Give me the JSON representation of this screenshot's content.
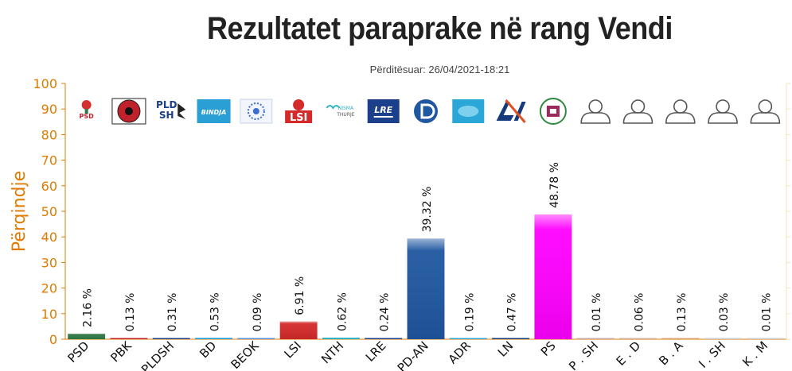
{
  "chart_data": {
    "type": "bar",
    "title": "Rezultatet paraprake në rang Vendi",
    "subtitle": "Përditësuar: 26/04/2021-18:21",
    "ylabel": "Përqindje",
    "xlabel": "",
    "ylim": [
      0,
      100
    ],
    "yticks": [
      0,
      10,
      20,
      30,
      40,
      50,
      60,
      70,
      80,
      90,
      100
    ],
    "grid": false,
    "categories": [
      "PSD",
      "PBK",
      "PLDSH",
      "BD",
      "BEOK",
      "LSI",
      "NTH",
      "LRE",
      "PD-AN",
      "ADR",
      "LN",
      "PS",
      "P . SH",
      "E . D",
      "B . A",
      "I . SH",
      "K . M"
    ],
    "values": [
      2.16,
      0.13,
      0.31,
      0.53,
      0.09,
      6.91,
      0.62,
      0.24,
      39.32,
      0.19,
      0.47,
      48.78,
      0.01,
      0.06,
      0.13,
      0.03,
      0.01
    ],
    "value_labels": [
      "2.16 %",
      "0.13 %",
      "0.31 %",
      "0.53 %",
      "0.09 %",
      "6.91 %",
      "0.62 %",
      "0.24 %",
      "39.32 %",
      "0.19 %",
      "0.47 %",
      "48.78 %",
      "0.01 %",
      "0.06 %",
      "0.13 %",
      "0.03 %",
      "0.01 %"
    ],
    "colors": [
      "#2f7a45",
      "#c0212b",
      "#1a3e88",
      "#2a9fd6",
      "#5b8ed6",
      "#d42a2a",
      "#30b3c6",
      "#1c3f8c",
      "#1f57a0",
      "#2aa7d6",
      "#163a7a",
      "#ff00ff",
      "#c8a8a8",
      "#d0b0a0",
      "#e0a070",
      "#cccccc",
      "#cccccc"
    ],
    "logos": [
      {
        "kind": "psd",
        "text": "PSD"
      },
      {
        "kind": "pbk",
        "text": ""
      },
      {
        "kind": "pldsh",
        "text": "PLD SH"
      },
      {
        "kind": "bd",
        "text": "BINDJA"
      },
      {
        "kind": "beok",
        "text": ""
      },
      {
        "kind": "lsi",
        "text": "LSI"
      },
      {
        "kind": "nth",
        "text": "NISMA THURJE"
      },
      {
        "kind": "lre",
        "text": "LRE"
      },
      {
        "kind": "pd",
        "text": ""
      },
      {
        "kind": "adr",
        "text": ""
      },
      {
        "kind": "ln",
        "text": ""
      },
      {
        "kind": "ps",
        "text": ""
      },
      {
        "kind": "person",
        "text": ""
      },
      {
        "kind": "person",
        "text": ""
      },
      {
        "kind": "person",
        "text": ""
      },
      {
        "kind": "person",
        "text": ""
      },
      {
        "kind": "person",
        "text": ""
      }
    ],
    "accent_color": "#e07b00"
  }
}
